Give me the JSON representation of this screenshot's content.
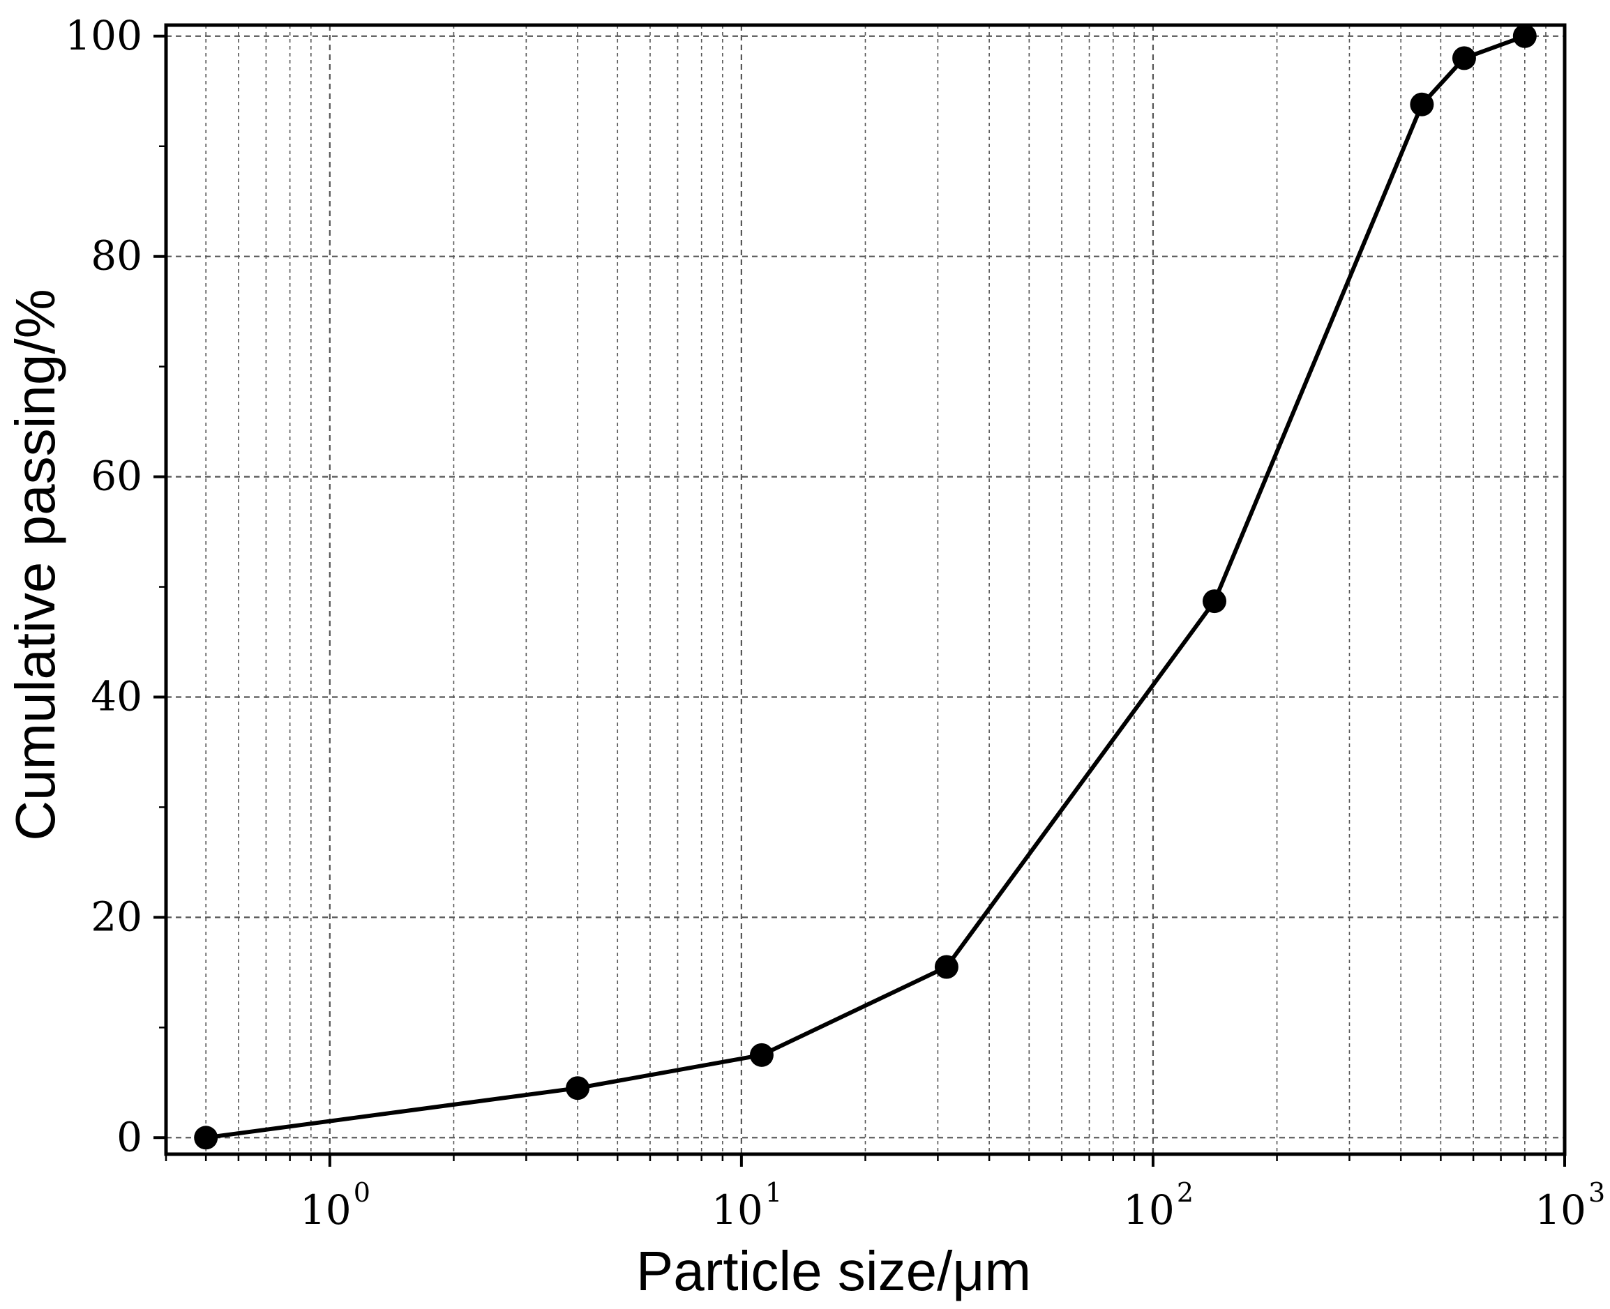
{
  "chart_data": {
    "type": "line",
    "xlabel": "Particle size/μm",
    "ylabel": "Cumulative passing/%",
    "x_scale": "log",
    "xlim": [
      0.4,
      1000
    ],
    "ylim": [
      -1.5,
      101
    ],
    "x_ticks": [
      {
        "value": 1,
        "base": "10",
        "exp": "0"
      },
      {
        "value": 10,
        "base": "10",
        "exp": "1"
      },
      {
        "value": 100,
        "base": "10",
        "exp": "2"
      },
      {
        "value": 1000,
        "base": "10",
        "exp": "3"
      }
    ],
    "y_ticks": [
      0,
      20,
      40,
      60,
      80,
      100
    ],
    "grid": true,
    "series": [
      {
        "x": [
          0.5,
          4,
          11.2,
          31.5,
          141,
          450,
          570,
          800
        ],
        "y": [
          0,
          4.5,
          7.5,
          15.5,
          48.7,
          93.8,
          98,
          100
        ]
      }
    ],
    "colors": {
      "line": "#000000",
      "marker": "#000000",
      "grid": "#555555"
    }
  }
}
